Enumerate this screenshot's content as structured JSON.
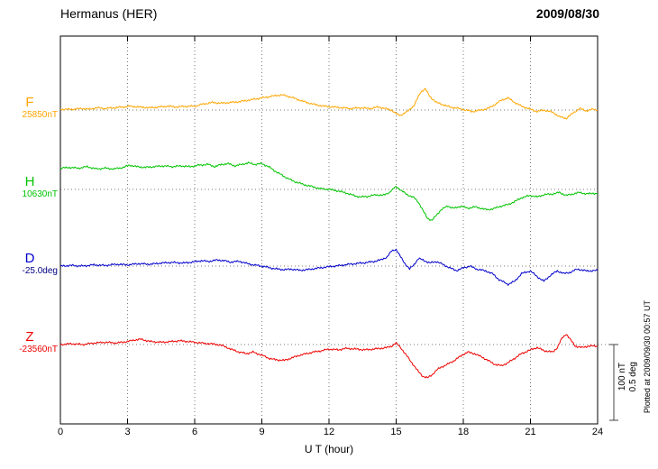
{
  "header": {
    "station": "Hermanus (HER)",
    "date": "2009/08/30"
  },
  "xaxis": {
    "label": "U T (hour)",
    "ticks": [
      "0",
      "3",
      "6",
      "9",
      "12",
      "15",
      "18",
      "21",
      "24"
    ],
    "tick_hours": [
      0,
      3,
      6,
      9,
      12,
      15,
      18,
      21,
      24
    ]
  },
  "scalebar": {
    "nt_label": "100 nT",
    "deg_label": "0.5 deg"
  },
  "plot_note": "Plotted at 2009/09/30 00:57 UT",
  "chart_data": {
    "type": "line",
    "title": "Hermanus (HER)",
    "date": "2009/08/30",
    "xlabel": "U T (hour)",
    "x_range": [
      0,
      24
    ],
    "grid": "dotted vertical every 3 h, dotted horizontal baseline per trace",
    "scale": {
      "bar_nT": 100,
      "bar_deg": 0.5
    },
    "series": [
      {
        "name": "F",
        "baseline_label": "25850nT",
        "unit": "nT",
        "color": "#ffa600",
        "label_color": "#ffa600",
        "points": [
          [
            0,
            1
          ],
          [
            0.5,
            1
          ],
          [
            1,
            2
          ],
          [
            1.3,
            1
          ],
          [
            1.6,
            3
          ],
          [
            2,
            2
          ],
          [
            2.4,
            3
          ],
          [
            2.8,
            4
          ],
          [
            3.1,
            5
          ],
          [
            3.5,
            4
          ],
          [
            4,
            3
          ],
          [
            4.4,
            4
          ],
          [
            4.8,
            5
          ],
          [
            5.2,
            4
          ],
          [
            5.6,
            5
          ],
          [
            6,
            5
          ],
          [
            6.4,
            8
          ],
          [
            6.8,
            10
          ],
          [
            7.2,
            9
          ],
          [
            7.6,
            10
          ],
          [
            8,
            11
          ],
          [
            8.4,
            13
          ],
          [
            8.8,
            15
          ],
          [
            9.2,
            17
          ],
          [
            9.6,
            19
          ],
          [
            9.9,
            20
          ],
          [
            10.2,
            18
          ],
          [
            10.6,
            14
          ],
          [
            11,
            10
          ],
          [
            11.4,
            7
          ],
          [
            11.8,
            5
          ],
          [
            12.2,
            4
          ],
          [
            12.6,
            3
          ],
          [
            13,
            2
          ],
          [
            13.4,
            3
          ],
          [
            13.8,
            2
          ],
          [
            14.2,
            4
          ],
          [
            14.5,
            2
          ],
          [
            14.8,
            0
          ],
          [
            15,
            -5
          ],
          [
            15.2,
            -7
          ],
          [
            15.5,
            -2
          ],
          [
            15.8,
            6
          ],
          [
            16.1,
            24
          ],
          [
            16.3,
            28
          ],
          [
            16.5,
            18
          ],
          [
            16.8,
            10
          ],
          [
            17.1,
            7
          ],
          [
            17.4,
            4
          ],
          [
            17.8,
            2
          ],
          [
            18.1,
            0
          ],
          [
            18.4,
            -2
          ],
          [
            18.8,
            0
          ],
          [
            19.1,
            2
          ],
          [
            19.4,
            7
          ],
          [
            19.7,
            13
          ],
          [
            20,
            16
          ],
          [
            20.3,
            10
          ],
          [
            20.6,
            5
          ],
          [
            21,
            1
          ],
          [
            21.3,
            -2
          ],
          [
            21.6,
            0
          ],
          [
            22,
            -3
          ],
          [
            22.3,
            -9
          ],
          [
            22.6,
            -11
          ],
          [
            22.9,
            -4
          ],
          [
            23.2,
            2
          ],
          [
            23.5,
            -1
          ],
          [
            23.8,
            1
          ],
          [
            24,
            0
          ]
        ]
      },
      {
        "name": "H",
        "baseline_label": "10630nT",
        "unit": "nT",
        "color": "#00c400",
        "label_color": "#00c400",
        "points": [
          [
            0,
            28
          ],
          [
            0.4,
            29
          ],
          [
            0.8,
            28
          ],
          [
            1.2,
            30
          ],
          [
            1.6,
            27
          ],
          [
            2,
            28
          ],
          [
            2.4,
            27
          ],
          [
            2.8,
            29
          ],
          [
            3.1,
            32
          ],
          [
            3.4,
            30
          ],
          [
            3.8,
            29
          ],
          [
            4.2,
            30
          ],
          [
            4.6,
            31
          ],
          [
            5,
            30
          ],
          [
            5.4,
            31
          ],
          [
            5.8,
            30
          ],
          [
            6.2,
            32
          ],
          [
            6.6,
            33
          ],
          [
            6.9,
            30
          ],
          [
            7.2,
            33
          ],
          [
            7.5,
            34
          ],
          [
            7.8,
            31
          ],
          [
            8.1,
            33
          ],
          [
            8.4,
            35
          ],
          [
            8.7,
            33
          ],
          [
            9,
            34
          ],
          [
            9.3,
            30
          ],
          [
            9.6,
            24
          ],
          [
            10,
            17
          ],
          [
            10.4,
            11
          ],
          [
            10.8,
            7
          ],
          [
            11.2,
            4
          ],
          [
            11.6,
            1
          ],
          [
            12,
            0
          ],
          [
            12.4,
            -2
          ],
          [
            12.8,
            -5
          ],
          [
            13.1,
            -8
          ],
          [
            13.4,
            -10
          ],
          [
            13.8,
            -9
          ],
          [
            14.1,
            -7
          ],
          [
            14.4,
            -8
          ],
          [
            14.7,
            -4
          ],
          [
            15,
            4
          ],
          [
            15.2,
            -1
          ],
          [
            15.5,
            -7
          ],
          [
            15.8,
            -11
          ],
          [
            16,
            -17
          ],
          [
            16.2,
            -28
          ],
          [
            16.4,
            -38
          ],
          [
            16.6,
            -41
          ],
          [
            16.8,
            -34
          ],
          [
            17,
            -27
          ],
          [
            17.3,
            -22
          ],
          [
            17.6,
            -25
          ],
          [
            17.9,
            -22
          ],
          [
            18.2,
            -25
          ],
          [
            18.5,
            -23
          ],
          [
            18.8,
            -25
          ],
          [
            19.1,
            -27
          ],
          [
            19.4,
            -25
          ],
          [
            19.7,
            -22
          ],
          [
            20,
            -20
          ],
          [
            20.3,
            -16
          ],
          [
            20.6,
            -11
          ],
          [
            21,
            -8
          ],
          [
            21.3,
            -10
          ],
          [
            21.6,
            -7
          ],
          [
            22,
            -6
          ],
          [
            22.3,
            -4
          ],
          [
            22.6,
            -8
          ],
          [
            22.9,
            -6
          ],
          [
            23.2,
            -4
          ],
          [
            23.5,
            -6
          ],
          [
            23.8,
            -5
          ],
          [
            24,
            -6
          ]
        ]
      },
      {
        "name": "D",
        "baseline_label": "-25.0deg",
        "unit": "deg",
        "color": "#0000cc",
        "label_color": "#000080",
        "points": [
          [
            0,
            0
          ],
          [
            0.5,
            0.004
          ],
          [
            1,
            0
          ],
          [
            1.5,
            0.008
          ],
          [
            2,
            0.004
          ],
          [
            2.5,
            0.012
          ],
          [
            3,
            0.008
          ],
          [
            3.5,
            0.016
          ],
          [
            4,
            0.012
          ],
          [
            4.5,
            0.02
          ],
          [
            5,
            0.024
          ],
          [
            5.5,
            0.02
          ],
          [
            6,
            0.028
          ],
          [
            6.3,
            0.036
          ],
          [
            6.6,
            0.03
          ],
          [
            7,
            0.04
          ],
          [
            7.3,
            0.036
          ],
          [
            7.6,
            0.026
          ],
          [
            8,
            0.032
          ],
          [
            8.3,
            0.018
          ],
          [
            8.6,
            0.008
          ],
          [
            9,
            0
          ],
          [
            9.3,
            -0.01
          ],
          [
            9.6,
            -0.018
          ],
          [
            10,
            -0.024
          ],
          [
            10.3,
            -0.02
          ],
          [
            10.7,
            -0.028
          ],
          [
            11,
            -0.024
          ],
          [
            11.5,
            -0.014
          ],
          [
            12,
            -0.004
          ],
          [
            12.4,
            0.002
          ],
          [
            12.8,
            0.01
          ],
          [
            13.2,
            0.016
          ],
          [
            13.6,
            0.022
          ],
          [
            14,
            0.03
          ],
          [
            14.3,
            0.04
          ],
          [
            14.6,
            0.06
          ],
          [
            14.8,
            0.1
          ],
          [
            15,
            0.11
          ],
          [
            15.2,
            0.06
          ],
          [
            15.4,
            0.015
          ],
          [
            15.6,
            -0.02
          ],
          [
            15.8,
            0.01
          ],
          [
            16,
            0.05
          ],
          [
            16.2,
            0.04
          ],
          [
            16.5,
            0.02
          ],
          [
            16.8,
            0.03
          ],
          [
            17.1,
            0.01
          ],
          [
            17.4,
            -0.012
          ],
          [
            17.7,
            -0.03
          ],
          [
            18,
            -0.012
          ],
          [
            18.3,
            0
          ],
          [
            18.6,
            -0.02
          ],
          [
            19,
            -0.032
          ],
          [
            19.3,
            -0.05
          ],
          [
            19.6,
            -0.09
          ],
          [
            20,
            -0.12
          ],
          [
            20.3,
            -0.1
          ],
          [
            20.6,
            -0.05
          ],
          [
            21,
            -0.032
          ],
          [
            21.3,
            -0.07
          ],
          [
            21.6,
            -0.1
          ],
          [
            21.9,
            -0.06
          ],
          [
            22.2,
            -0.032
          ],
          [
            22.5,
            -0.05
          ],
          [
            22.8,
            -0.04
          ],
          [
            23.1,
            -0.02
          ],
          [
            23.5,
            -0.032
          ],
          [
            24,
            -0.03
          ]
        ]
      },
      {
        "name": "Z",
        "baseline_label": "-23560nT",
        "unit": "nT",
        "color": "#ee0000",
        "label_color": "#ee0000",
        "points": [
          [
            0,
            0
          ],
          [
            0.5,
            1
          ],
          [
            1,
            0
          ],
          [
            1.5,
            2
          ],
          [
            2,
            3
          ],
          [
            2.5,
            2
          ],
          [
            3,
            4
          ],
          [
            3.3,
            6
          ],
          [
            3.6,
            7
          ],
          [
            4,
            4
          ],
          [
            4.5,
            3
          ],
          [
            5,
            4
          ],
          [
            5.3,
            5
          ],
          [
            5.7,
            4
          ],
          [
            6,
            3
          ],
          [
            6.3,
            2
          ],
          [
            6.7,
            1
          ],
          [
            7,
            0
          ],
          [
            7.3,
            -2
          ],
          [
            7.6,
            -6
          ],
          [
            8,
            -10
          ],
          [
            8.3,
            -12
          ],
          [
            8.6,
            -10
          ],
          [
            9,
            -14
          ],
          [
            9.3,
            -18
          ],
          [
            9.6,
            -20
          ],
          [
            10,
            -21
          ],
          [
            10.3,
            -18
          ],
          [
            10.7,
            -14
          ],
          [
            11,
            -12
          ],
          [
            11.3,
            -10
          ],
          [
            11.7,
            -8
          ],
          [
            12,
            -6
          ],
          [
            12.4,
            -7
          ],
          [
            12.8,
            -5
          ],
          [
            13.2,
            -6
          ],
          [
            13.6,
            -7
          ],
          [
            14,
            -6
          ],
          [
            14.3,
            -5
          ],
          [
            14.6,
            -4
          ],
          [
            14.8,
            -2
          ],
          [
            15,
            2
          ],
          [
            15.2,
            -4
          ],
          [
            15.4,
            -12
          ],
          [
            15.6,
            -20
          ],
          [
            15.8,
            -28
          ],
          [
            16,
            -36
          ],
          [
            16.2,
            -42
          ],
          [
            16.4,
            -44
          ],
          [
            16.6,
            -40
          ],
          [
            16.8,
            -34
          ],
          [
            17,
            -30
          ],
          [
            17.3,
            -26
          ],
          [
            17.6,
            -21
          ],
          [
            18,
            -13
          ],
          [
            18.2,
            -10
          ],
          [
            18.5,
            -12
          ],
          [
            18.8,
            -16
          ],
          [
            19.1,
            -21
          ],
          [
            19.4,
            -26
          ],
          [
            19.7,
            -28
          ],
          [
            20,
            -24
          ],
          [
            20.3,
            -18
          ],
          [
            20.6,
            -12
          ],
          [
            21,
            -7
          ],
          [
            21.3,
            -4
          ],
          [
            21.6,
            -8
          ],
          [
            22,
            -10
          ],
          [
            22.2,
            -4
          ],
          [
            22.4,
            8
          ],
          [
            22.6,
            14
          ],
          [
            22.8,
            6
          ],
          [
            23,
            -2
          ],
          [
            23.3,
            -4
          ],
          [
            23.6,
            -2
          ],
          [
            24,
            -2
          ]
        ]
      }
    ]
  }
}
